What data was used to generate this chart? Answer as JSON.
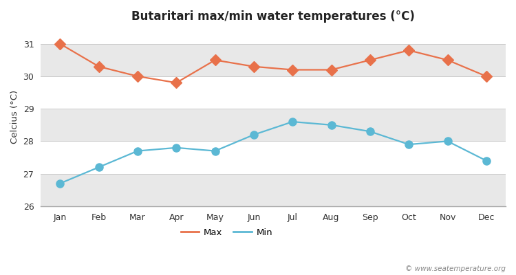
{
  "months": [
    "Jan",
    "Feb",
    "Mar",
    "Apr",
    "May",
    "Jun",
    "Jul",
    "Aug",
    "Sep",
    "Oct",
    "Nov",
    "Dec"
  ],
  "max_temps": [
    31.0,
    30.3,
    30.0,
    29.8,
    30.5,
    30.3,
    30.2,
    30.2,
    30.5,
    30.8,
    30.5,
    30.0
  ],
  "min_temps": [
    26.7,
    27.2,
    27.7,
    27.8,
    27.7,
    28.2,
    28.6,
    28.5,
    28.3,
    27.9,
    28.0,
    27.4
  ],
  "max_color": "#e8714a",
  "min_color": "#5bb8d4",
  "title": "Butaritari max/min water temperatures (°C)",
  "ylabel": "Celcius (°C)",
  "ylim": [
    26.0,
    31.5
  ],
  "yticks": [
    26,
    27,
    28,
    29,
    30,
    31
  ],
  "legend_labels": [
    "Max",
    "Min"
  ],
  "watermark": "© www.seatemperature.org",
  "bg_color": "#ffffff",
  "plot_bg_color": "#ffffff",
  "band_color": "#e8e8e8",
  "spine_color": "#aaaaaa",
  "marker_size": 8,
  "line_width": 1.6,
  "title_fontsize": 12,
  "label_fontsize": 9.5,
  "tick_fontsize": 9
}
